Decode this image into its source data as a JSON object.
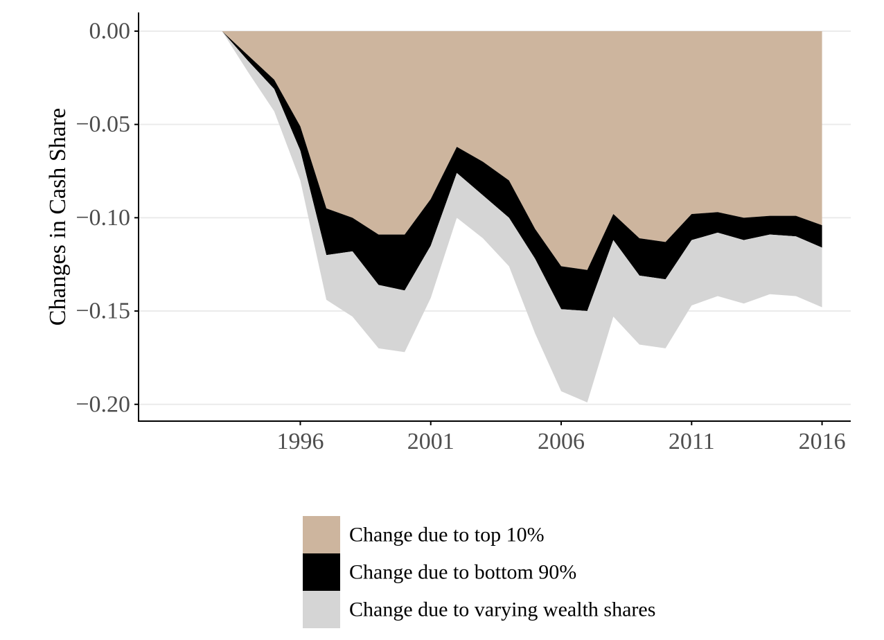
{
  "chart_data": {
    "type": "area",
    "title": "",
    "xlabel": "",
    "ylabel": "Changes in Cash Share",
    "x": [
      1993,
      1994,
      1995,
      1996,
      1997,
      1998,
      1999,
      2000,
      2001,
      2002,
      2003,
      2004,
      2005,
      2006,
      2007,
      2008,
      2009,
      2010,
      2011,
      2012,
      2013,
      2014,
      2015,
      2016
    ],
    "series": [
      {
        "name": "Change due to top 10%",
        "color": "#cdb59e",
        "values": [
          0.0,
          -0.013,
          -0.026,
          -0.051,
          -0.095,
          -0.1,
          -0.109,
          -0.109,
          -0.09,
          -0.062,
          -0.07,
          -0.08,
          -0.106,
          -0.126,
          -0.128,
          -0.098,
          -0.111,
          -0.113,
          -0.098,
          -0.097,
          -0.1,
          -0.099,
          -0.099,
          -0.104
        ]
      },
      {
        "name": "Change due to bottom 90%",
        "color": "#000000",
        "values": [
          0.0,
          -0.003,
          -0.005,
          -0.013,
          -0.025,
          -0.018,
          -0.027,
          -0.03,
          -0.025,
          -0.014,
          -0.018,
          -0.02,
          -0.016,
          -0.023,
          -0.022,
          -0.014,
          -0.02,
          -0.02,
          -0.014,
          -0.011,
          -0.012,
          -0.01,
          -0.011,
          -0.012
        ]
      },
      {
        "name": "Change due to varying wealth shares",
        "color": "#d5d5d5",
        "values": [
          0.0,
          -0.006,
          -0.012,
          -0.016,
          -0.024,
          -0.035,
          -0.034,
          -0.033,
          -0.028,
          -0.024,
          -0.023,
          -0.026,
          -0.04,
          -0.044,
          -0.049,
          -0.041,
          -0.037,
          -0.037,
          -0.035,
          -0.034,
          -0.034,
          -0.032,
          -0.032,
          -0.032
        ]
      }
    ],
    "ylim": [
      -0.209,
      0.01
    ],
    "xlim": [
      1989.8,
      2017.1
    ],
    "yticks": [
      0.0,
      -0.05,
      -0.1,
      -0.15,
      -0.2
    ],
    "ytick_labels": [
      "0.00",
      "−0.05",
      "−0.10",
      "−0.15",
      "−0.20"
    ],
    "xticks": [
      1996,
      2001,
      2006,
      2011,
      2016
    ],
    "xtick_labels": [
      "1996",
      "2001",
      "2006",
      "2011",
      "2016"
    ],
    "grid": "horizontal",
    "legend_position": "bottom",
    "stacked": true
  }
}
